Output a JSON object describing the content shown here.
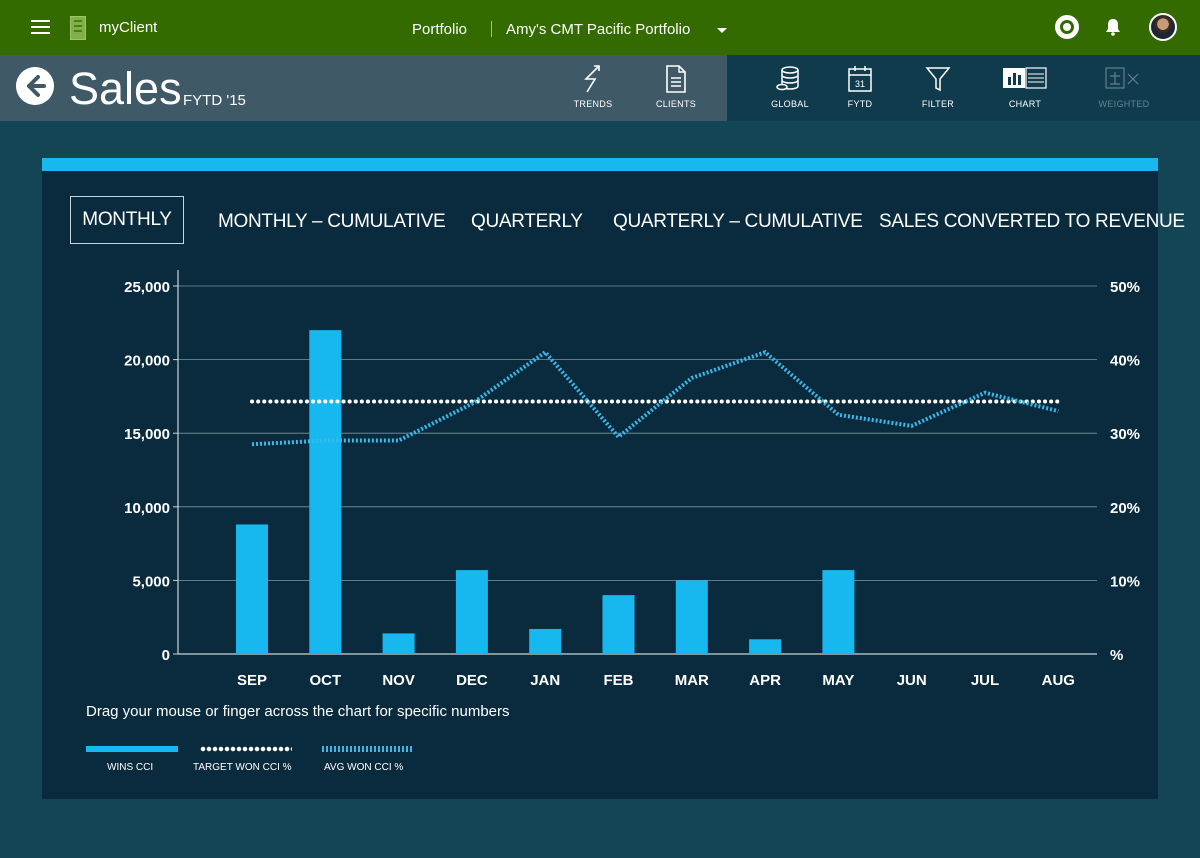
{
  "topbar": {
    "app_name": "myClient",
    "nav_portfolio": "Portfolio",
    "portfolio_name": "Amy's CMT Pacific Portfolio"
  },
  "header": {
    "title": "Sales",
    "subtitle": "FYTD '15",
    "tools": [
      {
        "label": "TRENDS",
        "icon": "trends-icon"
      },
      {
        "label": "CLIENTS",
        "icon": "document-icon"
      },
      {
        "label": "GLOBAL",
        "icon": "coins-stack-icon"
      },
      {
        "label": "FYTD",
        "icon": "calendar-icon",
        "calendar_day": "31"
      },
      {
        "label": "FILTER",
        "icon": "filter-icon"
      },
      {
        "label": "CHART",
        "icon": "chart-table-toggle-icon"
      },
      {
        "label": "WEIGHTED",
        "icon": "scales-icon",
        "disabled": true
      }
    ]
  },
  "tabs": [
    "MONTHLY",
    "MONTHLY – CUMULATIVE",
    "QUARTERLY",
    "QUARTERLY – CUMULATIVE",
    "SALES CONVERTED TO REVENUE"
  ],
  "active_tab": "MONTHLY",
  "hint": "Drag your mouse or finger across the chart for specific numbers",
  "colors": {
    "topbar": "#336b00",
    "accent": "#17b8ef",
    "card": "#092b3d",
    "background": "#134554"
  },
  "chart_data": {
    "type": "bar",
    "categories": [
      "SEP",
      "OCT",
      "NOV",
      "DEC",
      "JAN",
      "FEB",
      "MAR",
      "APR",
      "MAY",
      "JUN",
      "JUL",
      "AUG"
    ],
    "ylim": [
      0,
      25000
    ],
    "y_ticks": [
      "0",
      "5,000",
      "10,000",
      "15,000",
      "20,000",
      "25,000"
    ],
    "y2lim": [
      0,
      50
    ],
    "y2_ticks": [
      "%",
      "10%",
      "20%",
      "30%",
      "40%",
      "50%"
    ],
    "grid": true,
    "series": [
      {
        "name": "WINS CCI",
        "type": "bar",
        "axis": "left",
        "values": [
          8800,
          22000,
          1400,
          5700,
          1700,
          4000,
          5000,
          1000,
          5700,
          null,
          null,
          null
        ]
      },
      {
        "name": "TARGET WON CCI %",
        "type": "line",
        "style": "dotted",
        "axis": "right",
        "values": [
          34.3,
          34.3,
          34.3,
          34.3,
          34.3,
          34.3,
          34.3,
          34.3,
          34.3,
          34.3,
          34.3,
          34.3
        ]
      },
      {
        "name": "AVG WON CCI %",
        "type": "line",
        "style": "dashed",
        "axis": "right",
        "values": [
          28.5,
          29,
          29,
          34,
          41,
          29.5,
          37.5,
          41,
          32.5,
          31,
          35.5,
          33
        ]
      }
    ],
    "legend_placement": "bottom-left"
  }
}
